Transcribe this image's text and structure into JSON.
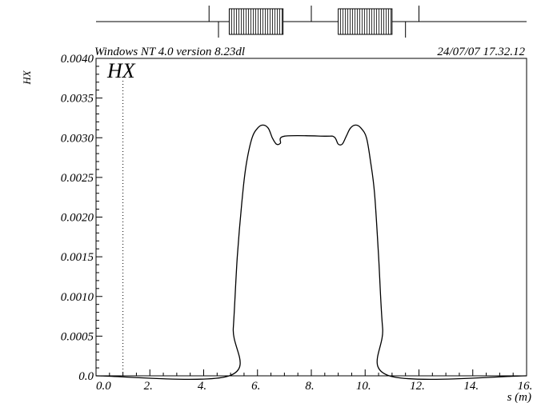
{
  "header": {
    "left": "Windows NT 4.0 version 8.23dl",
    "right": "24/07/07  17.32.12"
  },
  "chart_data": {
    "type": "line",
    "plot_label": "HX",
    "ylabel": "HX",
    "xlabel": "s (m)",
    "xlim": [
      0.0,
      16.0
    ],
    "ylim": [
      0.0,
      0.004
    ],
    "x_ticks": [
      "0.0",
      "2.",
      "4.",
      "6.",
      "8.",
      "10.",
      "12.",
      "14.",
      "16."
    ],
    "y_ticks": [
      "0.0",
      "0.0005",
      "0.0010",
      "0.0015",
      "0.0020",
      "0.0025",
      "0.0030",
      "0.0035",
      "0.0040"
    ],
    "marker_line_x": 1.0,
    "series": [
      {
        "x": [
          0.0,
          4.95,
          5.1,
          5.25,
          5.45,
          5.6,
          5.8,
          6.0,
          6.2,
          6.4,
          6.55,
          6.7,
          6.85,
          7.0,
          8.5,
          8.85,
          9.0,
          9.15,
          9.3,
          9.45,
          9.65,
          9.85,
          10.05,
          10.2,
          10.35,
          10.5,
          10.65,
          10.9,
          16.0
        ],
        "y": [
          0.0,
          0.0,
          0.0006,
          0.0015,
          0.0023,
          0.0027,
          0.003,
          0.00312,
          0.00316,
          0.00312,
          0.003,
          0.00292,
          0.00293,
          0.00302,
          0.00302,
          0.00301,
          0.00292,
          0.00292,
          0.00302,
          0.00312,
          0.00316,
          0.00312,
          0.003,
          0.0027,
          0.0023,
          0.0015,
          0.0006,
          0.0,
          0.0
        ]
      }
    ]
  },
  "beamline": {
    "elements": [
      {
        "type": "marker",
        "dir": "up",
        "s": 4.2
      },
      {
        "type": "marker",
        "dir": "down",
        "s": 4.55
      },
      {
        "type": "solenoid",
        "start": 4.95,
        "end": 6.95
      },
      {
        "type": "marker",
        "dir": "up",
        "s": 8.0
      },
      {
        "type": "solenoid",
        "start": 9.0,
        "end": 11.0
      },
      {
        "type": "marker",
        "dir": "down",
        "s": 11.5
      },
      {
        "type": "marker",
        "dir": "up",
        "s": 12.0
      }
    ]
  }
}
